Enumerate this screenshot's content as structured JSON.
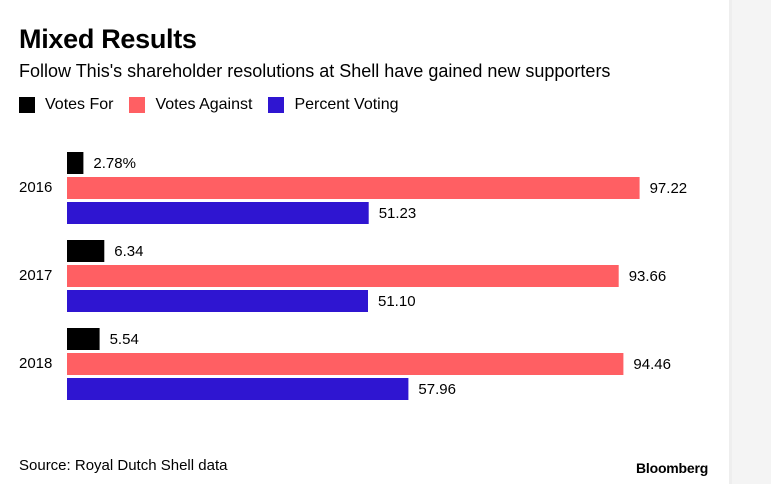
{
  "chart_data": {
    "type": "bar",
    "orientation": "horizontal",
    "title": "Mixed Results",
    "subtitle": "Follow This's shareholder resolutions at Shell have gained new supporters",
    "categories": [
      "2016",
      "2017",
      "2018"
    ],
    "series": [
      {
        "name": "Votes For",
        "color": "#000000",
        "values": [
          2.78,
          6.34,
          5.54
        ],
        "labels": [
          "2.78%",
          "6.34",
          "5.54"
        ]
      },
      {
        "name": "Votes Against",
        "color": "#ff5f63",
        "values": [
          97.22,
          93.66,
          94.46
        ],
        "labels": [
          "97.22",
          "93.66",
          "94.46"
        ]
      },
      {
        "name": "Percent Voting",
        "color": "#2f15d1",
        "values": [
          51.23,
          51.1,
          57.96
        ],
        "labels": [
          "51.23",
          "51.10",
          "57.96"
        ]
      }
    ],
    "xlim": [
      0,
      100
    ],
    "grid": false,
    "legend_position": "top-left",
    "source": "Source: Royal Dutch Shell data",
    "brand": "Bloomberg"
  }
}
